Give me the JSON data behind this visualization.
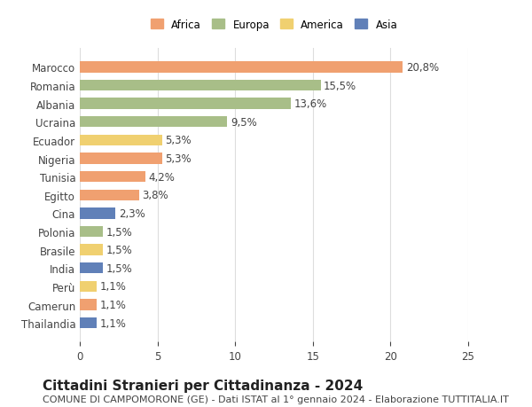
{
  "countries": [
    "Marocco",
    "Romania",
    "Albania",
    "Ucraina",
    "Ecuador",
    "Nigeria",
    "Tunisia",
    "Egitto",
    "Cina",
    "Polonia",
    "Brasile",
    "India",
    "Perù",
    "Camerun",
    "Thailandia"
  ],
  "values": [
    20.8,
    15.5,
    13.6,
    9.5,
    5.3,
    5.3,
    4.2,
    3.8,
    2.3,
    1.5,
    1.5,
    1.5,
    1.1,
    1.1,
    1.1
  ],
  "labels": [
    "20,8%",
    "15,5%",
    "13,6%",
    "9,5%",
    "5,3%",
    "5,3%",
    "4,2%",
    "3,8%",
    "2,3%",
    "1,5%",
    "1,5%",
    "1,5%",
    "1,1%",
    "1,1%",
    "1,1%"
  ],
  "continents": [
    "Africa",
    "Europa",
    "Europa",
    "Europa",
    "America",
    "Africa",
    "Africa",
    "Africa",
    "Asia",
    "Europa",
    "America",
    "Asia",
    "America",
    "Africa",
    "Asia"
  ],
  "continent_colors": {
    "Africa": "#F0A070",
    "Europa": "#A8BE88",
    "America": "#F0D070",
    "Asia": "#6080B8"
  },
  "legend_order": [
    "Africa",
    "Europa",
    "America",
    "Asia"
  ],
  "title": "Cittadini Stranieri per Cittadinanza - 2024",
  "subtitle": "COMUNE DI CAMPOMORONE (GE) - Dati ISTAT al 1° gennaio 2024 - Elaborazione TUTTITALIA.IT",
  "xlim": [
    0,
    25
  ],
  "xticks": [
    0,
    5,
    10,
    15,
    20,
    25
  ],
  "background_color": "#ffffff",
  "bar_height": 0.6,
  "grid_color": "#dddddd",
  "label_fontsize": 8.5,
  "tick_fontsize": 8.5,
  "title_fontsize": 11,
  "subtitle_fontsize": 8
}
